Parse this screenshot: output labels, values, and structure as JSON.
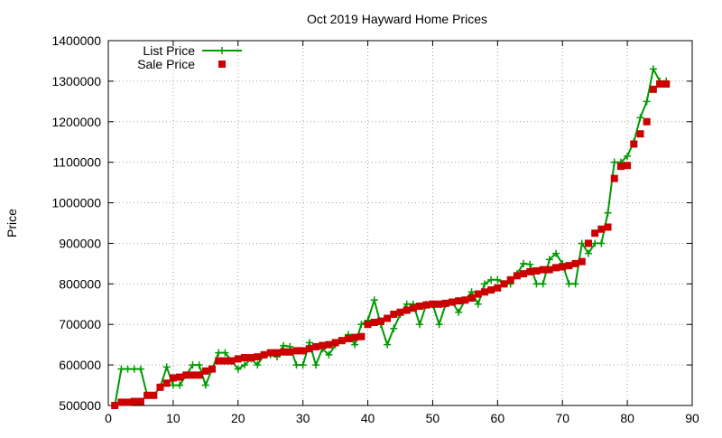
{
  "chart_data": {
    "type": "line",
    "title": "Oct 2019 Hayward Home Prices",
    "xlabel": "",
    "ylabel": "Price",
    "xlim": [
      0,
      90
    ],
    "ylim": [
      500000,
      1400000
    ],
    "xticks": [
      0,
      10,
      20,
      30,
      40,
      50,
      60,
      70,
      80,
      90
    ],
    "yticks": [
      500000,
      600000,
      700000,
      800000,
      900000,
      1000000,
      1100000,
      1200000,
      1300000,
      1400000
    ],
    "grid": true,
    "legend_position": "top-left",
    "series": [
      {
        "name": "List Price",
        "style": "line-plus",
        "color": "#009900",
        "x": [
          1,
          2,
          3,
          4,
          5,
          6,
          7,
          8,
          9,
          10,
          11,
          12,
          13,
          14,
          15,
          16,
          17,
          18,
          19,
          20,
          21,
          22,
          23,
          24,
          25,
          26,
          27,
          28,
          29,
          30,
          31,
          32,
          33,
          34,
          35,
          36,
          37,
          38,
          39,
          40,
          41,
          42,
          43,
          44,
          45,
          46,
          47,
          48,
          49,
          50,
          51,
          52,
          53,
          54,
          55,
          56,
          57,
          58,
          59,
          60,
          61,
          62,
          63,
          64,
          65,
          66,
          67,
          68,
          69,
          70,
          71,
          72,
          73,
          74,
          75,
          76,
          77,
          78,
          79,
          80,
          81,
          82,
          83,
          84,
          85,
          86
        ],
        "values": [
          500000,
          590000,
          590000,
          590000,
          590000,
          525000,
          525000,
          545000,
          595000,
          550000,
          550000,
          575000,
          600000,
          600000,
          550000,
          590000,
          630000,
          630000,
          610000,
          590000,
          600000,
          615000,
          600000,
          625000,
          625000,
          620000,
          648000,
          645000,
          600000,
          600000,
          655000,
          600000,
          640000,
          625000,
          650000,
          660000,
          675000,
          650000,
          700000,
          710000,
          760000,
          700000,
          650000,
          690000,
          725000,
          750000,
          750000,
          700000,
          749000,
          750000,
          700000,
          750000,
          755000,
          730000,
          760000,
          780000,
          750000,
          800000,
          810000,
          810000,
          800000,
          800000,
          825000,
          850000,
          848000,
          800000,
          800000,
          860000,
          875000,
          850000,
          800000,
          800000,
          900000,
          875000,
          900000,
          900000,
          975000,
          1100000,
          1100000,
          1115000,
          1150000,
          1210000,
          1250000,
          1330000,
          1300000,
          1300000
        ]
      },
      {
        "name": "Sale Price",
        "style": "square",
        "color": "#cc0000",
        "x": [
          1,
          2,
          3,
          4,
          5,
          6,
          7,
          8,
          9,
          10,
          11,
          12,
          13,
          14,
          15,
          16,
          17,
          18,
          19,
          20,
          21,
          22,
          23,
          24,
          25,
          26,
          27,
          28,
          29,
          30,
          31,
          32,
          33,
          34,
          35,
          36,
          37,
          38,
          39,
          40,
          41,
          42,
          43,
          44,
          45,
          46,
          47,
          48,
          49,
          50,
          51,
          52,
          53,
          54,
          55,
          56,
          57,
          58,
          59,
          60,
          61,
          62,
          63,
          64,
          65,
          66,
          67,
          68,
          69,
          70,
          71,
          72,
          73,
          74,
          75,
          76,
          77,
          78,
          79,
          80,
          81,
          82,
          83,
          84,
          85,
          86
        ],
        "values": [
          500000,
          508000,
          508000,
          510000,
          510000,
          525000,
          525000,
          545000,
          555000,
          568000,
          570000,
          575000,
          575000,
          575000,
          585000,
          590000,
          610000,
          610000,
          610000,
          615000,
          618000,
          618000,
          620000,
          625000,
          630000,
          630000,
          632000,
          632000,
          635000,
          635000,
          640000,
          645000,
          648000,
          650000,
          655000,
          660000,
          665000,
          668000,
          670000,
          700000,
          705000,
          708000,
          715000,
          725000,
          730000,
          735000,
          740000,
          745000,
          748000,
          750000,
          750000,
          752000,
          755000,
          758000,
          760000,
          765000,
          775000,
          780000,
          785000,
          790000,
          800000,
          810000,
          820000,
          825000,
          830000,
          832000,
          835000,
          835000,
          840000,
          842000,
          845000,
          850000,
          855000,
          900000,
          925000,
          935000,
          940000,
          1060000,
          1090000,
          1092000,
          1145000,
          1170000,
          1200000,
          1280000,
          1293000,
          1293000
        ]
      }
    ]
  }
}
